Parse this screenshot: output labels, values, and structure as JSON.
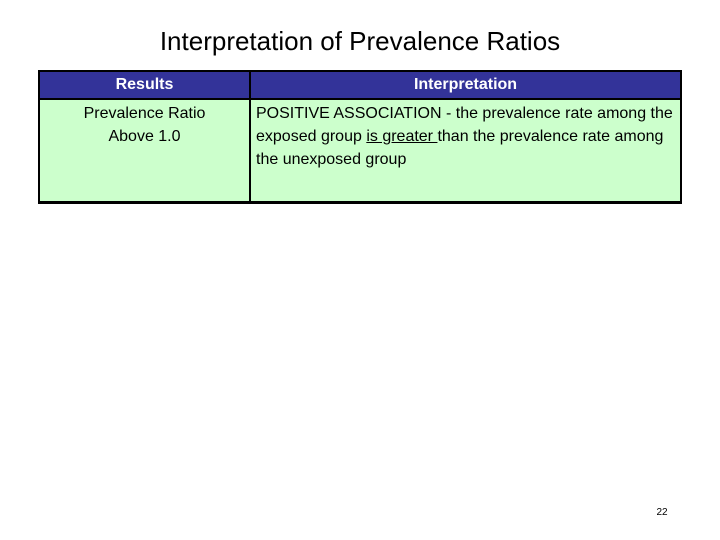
{
  "slide": {
    "title": "Interpretation of Prevalence Ratios",
    "page_number": "22"
  },
  "table": {
    "headers": [
      {
        "label": "Results"
      },
      {
        "label": "Interpretation"
      }
    ],
    "row": {
      "result_lines": [
        "Prevalence Ratio",
        "Above 1.0"
      ],
      "interpretation": {
        "before": "POSITIVE ASSOCIATION - the prevalence rate among the exposed group ",
        "underlined": "is greater ",
        "after": "than the prevalence rate among the unexposed group"
      }
    },
    "colors": {
      "header_bg": "#333399",
      "header_text": "#ffffff",
      "body_bg": "#ccffcc",
      "border": "#000000"
    }
  }
}
